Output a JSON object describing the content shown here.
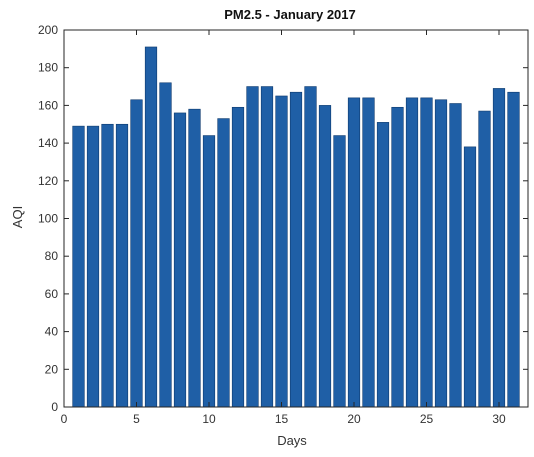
{
  "chart_data": {
    "type": "bar",
    "title": "PM2.5 - January 2017",
    "xlabel": "Days",
    "ylabel": "AQI",
    "x": [
      1,
      2,
      3,
      4,
      5,
      6,
      7,
      8,
      9,
      10,
      11,
      12,
      13,
      14,
      15,
      16,
      17,
      18,
      19,
      20,
      21,
      22,
      23,
      24,
      25,
      26,
      27,
      28,
      29,
      30,
      31
    ],
    "values": [
      149,
      149,
      150,
      150,
      163,
      191,
      172,
      156,
      158,
      144,
      153,
      159,
      170,
      170,
      165,
      167,
      170,
      160,
      144,
      164,
      164,
      151,
      159,
      164,
      164,
      163,
      161,
      138,
      157,
      169,
      167
    ],
    "xlim": [
      0,
      32
    ],
    "ylim": [
      0,
      200
    ],
    "xticks": [
      0,
      5,
      10,
      15,
      20,
      25,
      30
    ],
    "yticks": [
      0,
      20,
      40,
      60,
      80,
      100,
      120,
      140,
      160,
      180,
      200
    ],
    "bar_color": "#1f5fa6",
    "bar_edge_color": "#0d3a6e",
    "grid": false,
    "legend": "none"
  }
}
